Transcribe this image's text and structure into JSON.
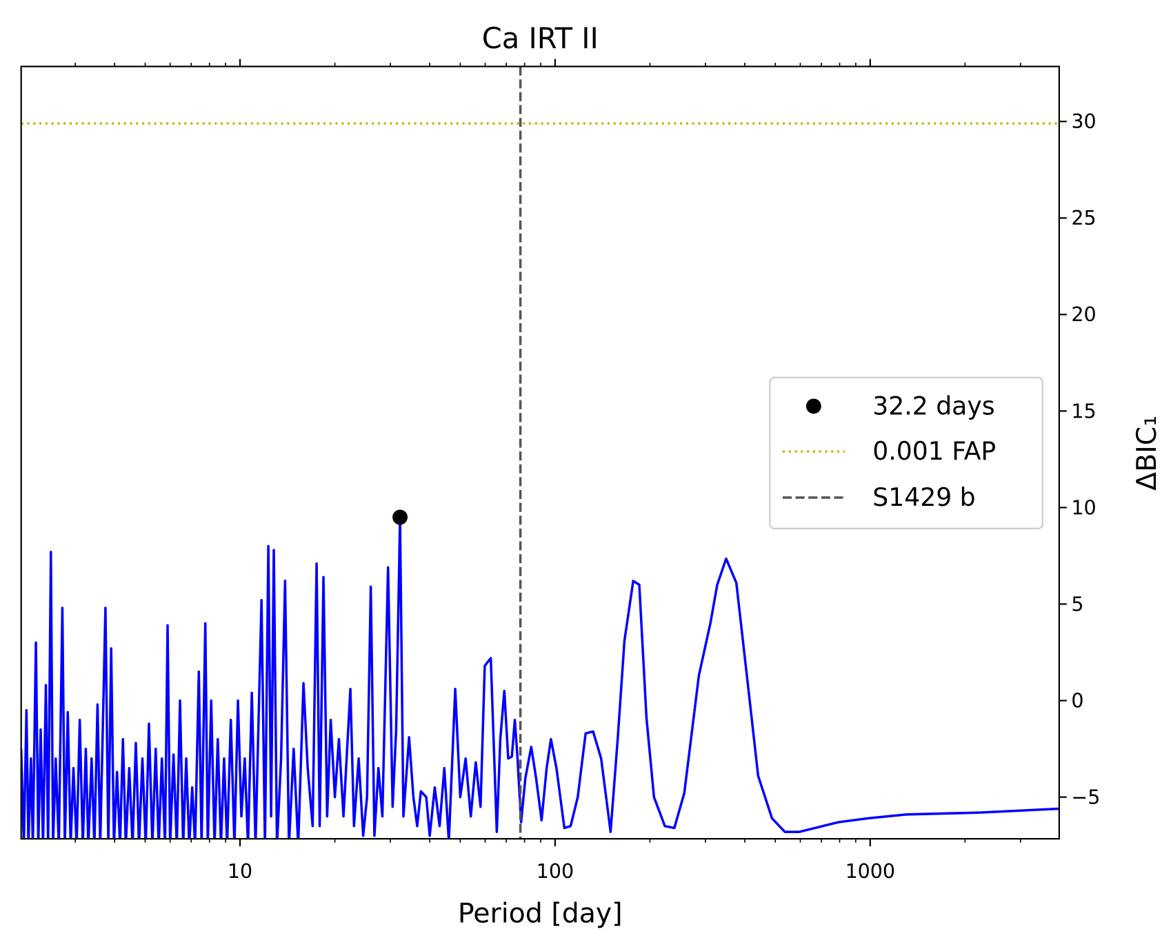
{
  "chart_data": {
    "type": "line",
    "title": "Ca IRT II",
    "xlabel": "Period [day]",
    "ylabel": "ΔBIC₁",
    "xscale": "log",
    "xlim": [
      2.02,
      3980
    ],
    "ylim": [
      -7.16,
      32.85
    ],
    "xticks": [
      10,
      100,
      1000
    ],
    "xminorticks": [
      3,
      4,
      5,
      6,
      7,
      8,
      9,
      20,
      30,
      40,
      50,
      60,
      70,
      80,
      90,
      200,
      300,
      400,
      500,
      600,
      700,
      800,
      900,
      2000,
      3000
    ],
    "yticks": [
      -5,
      0,
      5,
      10,
      15,
      20,
      25,
      30
    ],
    "yaxis_side": "right",
    "color": "#0000ff",
    "x": [
      2.02,
      2.06,
      2.1,
      2.13,
      2.17,
      2.2,
      2.25,
      2.29,
      2.33,
      2.37,
      2.42,
      2.46,
      2.51,
      2.55,
      2.6,
      2.66,
      2.73,
      2.78,
      2.84,
      2.9,
      2.96,
      3.03,
      3.1,
      3.17,
      3.24,
      3.3,
      3.38,
      3.45,
      3.53,
      3.6,
      3.74,
      3.82,
      3.9,
      3.98,
      4.07,
      4.16,
      4.25,
      4.34,
      4.45,
      4.56,
      4.67,
      4.78,
      4.9,
      5.02,
      5.14,
      5.27,
      5.4,
      5.52,
      5.65,
      5.78,
      5.89,
      6.0,
      6.15,
      6.3,
      6.45,
      6.6,
      6.75,
      6.9,
      7.05,
      7.2,
      7.4,
      7.55,
      7.76,
      7.9,
      8.1,
      8.3,
      8.5,
      8.7,
      8.9,
      9.1,
      9.35,
      9.6,
      9.85,
      10.1,
      10.35,
      10.6,
      10.9,
      11.2,
      11.7,
      12.0,
      12.3,
      12.55,
      12.8,
      13.1,
      13.5,
      13.9,
      14.3,
      14.8,
      15.3,
      15.9,
      16.4,
      17.0,
      17.5,
      17.9,
      18.4,
      18.9,
      19.4,
      20.0,
      20.6,
      21.3,
      22.4,
      23.0,
      23.8,
      24.6,
      25.3,
      26,
      26.7,
      27.5,
      28.3,
      29.5,
      30.5,
      31.3,
      32.2,
      33,
      34.4,
      35.5,
      36.5,
      37.5,
      39,
      40,
      41.5,
      43,
      44.5,
      46,
      48.2,
      50,
      52,
      54,
      56,
      58,
      59.8,
      62.5,
      65.3,
      67,
      69,
      71,
      72.9,
      74.5,
      76,
      78,
      80.5,
      84,
      87,
      90.6,
      94,
      97,
      101,
      107,
      112,
      118,
      125,
      132,
      140,
      150,
      158,
      166,
      177,
      185,
      195,
      206,
      223,
      239,
      257,
      286,
      311,
      327,
      349,
      376,
      410,
      441,
      488,
      536,
      596,
      793,
      980,
      1300,
      2250,
      3980
    ],
    "values": [
      -2.5,
      -7.5,
      -0.5,
      -7.5,
      -3,
      -7.5,
      3,
      -7.5,
      -1.5,
      -7.5,
      0.8,
      -7.5,
      7.7,
      -7.5,
      -3,
      -7.5,
      4.8,
      -7.5,
      -0.6,
      -7.5,
      -3.5,
      -7.5,
      -1,
      -7.5,
      -2.5,
      -7.5,
      -3,
      -7.5,
      -0.2,
      -7.5,
      4.8,
      -7.5,
      2.7,
      -7.5,
      -3.7,
      -7.5,
      -2,
      -7.5,
      -3.5,
      -7.5,
      -2.2,
      -7.5,
      -3,
      -7.5,
      -1.2,
      -7.5,
      -2.5,
      -7.5,
      -3,
      -7.5,
      3.9,
      -7.5,
      -2.8,
      -7.5,
      0,
      -7.5,
      -3,
      -7.5,
      -4.5,
      -7.5,
      1.5,
      -7.5,
      4.0,
      -7.5,
      0,
      -7.5,
      -2,
      -7.5,
      -3,
      -7.5,
      -1,
      -7.5,
      0,
      -6,
      -3,
      -7.5,
      0.4,
      -7.5,
      5.2,
      -7.5,
      8.0,
      -6,
      7.8,
      -7.5,
      -3,
      6.2,
      -7.5,
      -2.5,
      -7.5,
      0.9,
      -3.5,
      -6.5,
      7.1,
      -6.5,
      6.4,
      -6,
      -1,
      -5,
      -2,
      -6,
      0.6,
      -6.5,
      -3,
      -7,
      -5,
      5.9,
      -7,
      -3.5,
      -6,
      6.9,
      -5.5,
      -1.5,
      9.5,
      -6,
      -1.9,
      -5,
      -6.5,
      -4.7,
      -5,
      -7,
      -4.5,
      -6.5,
      -3.5,
      -7.3,
      0.6,
      -5,
      -3,
      -6,
      -3.2,
      -5.5,
      1.8,
      2.2,
      -6.8,
      -2,
      0.5,
      -3,
      -2.9,
      -1.0,
      -3,
      -6.3,
      -4,
      -2.4,
      -4,
      -6.2,
      -3.5,
      -2.0,
      -3.5,
      -6.6,
      -6.5,
      -5,
      -1.7,
      -1.6,
      -3,
      -6.8,
      -2,
      3.1,
      6.2,
      6.0,
      -0.9,
      -5.0,
      -6.5,
      -6.6,
      -4.8,
      1.3,
      4.0,
      6.0,
      7.35,
      6.1,
      0.7,
      -3.9,
      -6.1,
      -6.8,
      -6.8,
      -6.3,
      -6.1,
      -5.9,
      -5.8,
      -5.6
    ],
    "peak": {
      "name": "32.2 days",
      "x": 32.2,
      "y": 9.5,
      "color": "#000000"
    },
    "fap": {
      "name": "0.001 FAP",
      "value": 29.9,
      "color": "#bcbd22"
    },
    "planet": {
      "name": "S1429 b",
      "value": 77.6,
      "color": "#555555"
    },
    "legend": "center right"
  }
}
